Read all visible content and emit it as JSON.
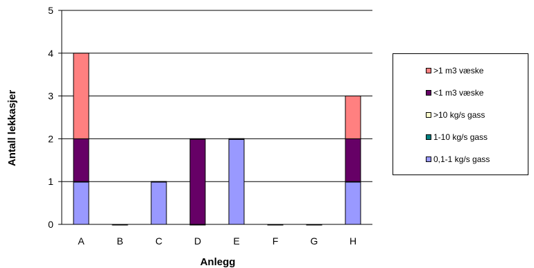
{
  "chart_data": {
    "type": "bar",
    "stacked": true,
    "categories": [
      "A",
      "B",
      "C",
      "D",
      "E",
      "F",
      "G",
      "H"
    ],
    "series": [
      {
        "name": "0,1-1 kg/s gass",
        "color": "#9999ff",
        "values": [
          1,
          0,
          1,
          0,
          2,
          0,
          0,
          1
        ]
      },
      {
        "name": "1-10 kg/s gass",
        "color": "#008080",
        "values": [
          0,
          0,
          0,
          0,
          0,
          0,
          0,
          0
        ]
      },
      {
        "name": ">10 kg/s gass",
        "color": "#ffffcc",
        "values": [
          0,
          0,
          0,
          0,
          0,
          0,
          0,
          0
        ]
      },
      {
        "name": "<1 m3 væske",
        "color": "#660066",
        "values": [
          1,
          0,
          0,
          2,
          0,
          0,
          0,
          1
        ]
      },
      {
        "name": ">1 m3 væske",
        "color": "#ff8080",
        "values": [
          2,
          0,
          0,
          0,
          0,
          0,
          0,
          1
        ]
      }
    ],
    "xlabel": "Anlegg",
    "ylabel": "Antall lekkasjer",
    "ylim": [
      0,
      5
    ],
    "yticks": [
      "0",
      "1",
      "2",
      "3",
      "4",
      "5"
    ],
    "grid": true,
    "legend_position": "right",
    "legend_order": [
      ">1 m3 væske",
      "<1 m3 væske",
      ">10 kg/s gass",
      "1-10 kg/s gass",
      "0,1-1 kg/s gass"
    ]
  }
}
